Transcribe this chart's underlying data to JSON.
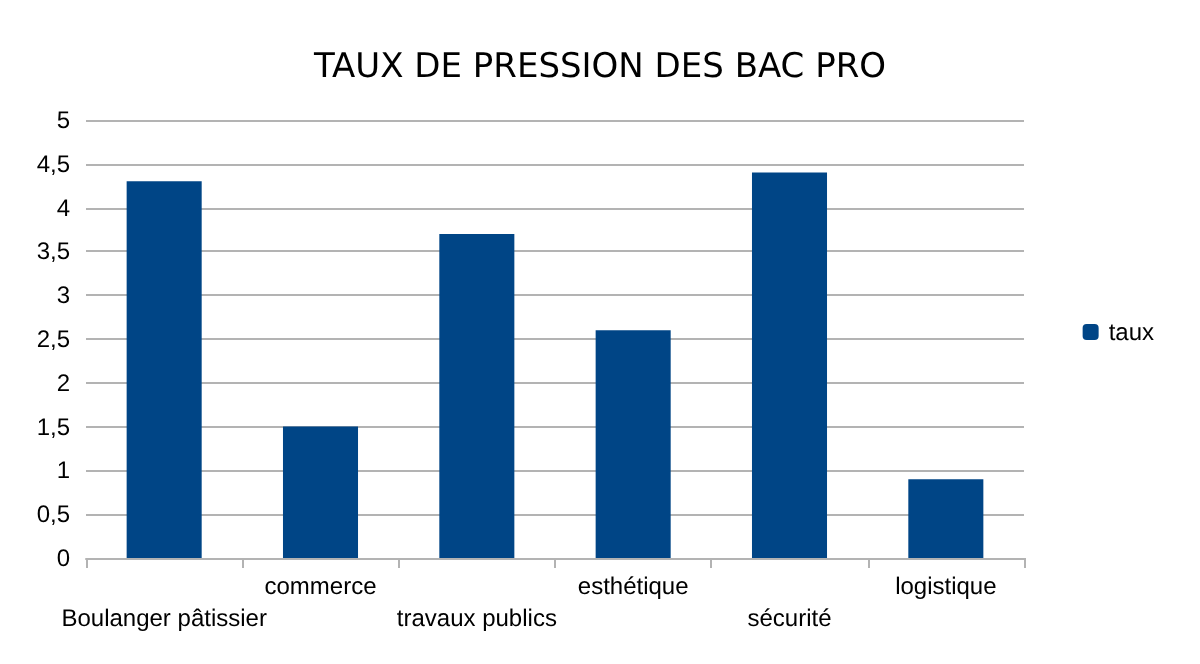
{
  "chart_data": {
    "type": "bar",
    "title": "TAUX DE PRESSION DES BAC PRO",
    "categories": [
      "Boulanger pâtissier",
      "commerce",
      "travaux publics",
      "esthétique",
      "sécurité",
      "logistique"
    ],
    "series": [
      {
        "name": "taux",
        "color": "#004586",
        "values": [
          4.3,
          1.5,
          3.7,
          2.6,
          4.4,
          0.9
        ]
      }
    ],
    "ylim": [
      0,
      5
    ],
    "yticks": [
      0,
      {
        "value": 0.5,
        "label": "0,5"
      },
      1,
      {
        "value": 1.5,
        "label": "1,5"
      },
      2,
      {
        "value": 2.5,
        "label": "2,5"
      },
      3,
      {
        "value": 3.5,
        "label": "3,5"
      },
      4,
      {
        "value": 4.5,
        "label": "4,5"
      },
      5
    ],
    "grid": "y",
    "legend": "right"
  }
}
